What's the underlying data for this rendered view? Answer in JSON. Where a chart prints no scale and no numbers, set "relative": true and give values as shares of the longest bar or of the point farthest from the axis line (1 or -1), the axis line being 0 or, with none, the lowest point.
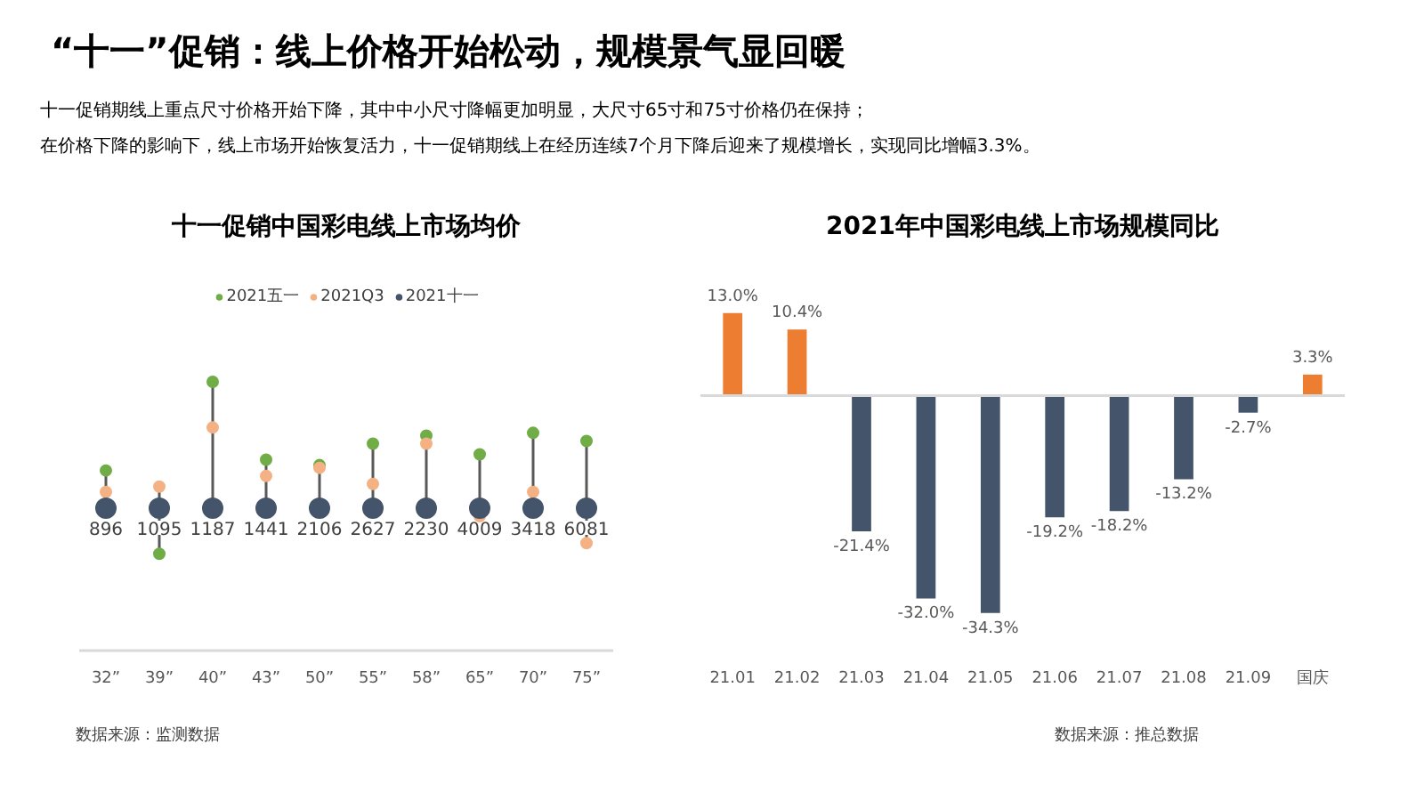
{
  "chart_data": [
    {
      "type": "other",
      "title": "“十一”促销：线上价格开始松动，规模景气显回暖",
      "annotations": [
        "十一促销期线上重点尺寸价格开始下降，其中中小尺寸降幅更加明显，大尺寸65寸和75寸价格仍在保持；",
        "在价格下降的影响下，线上市场开始恢复活力，十一促销期线上在经历连续7个月下降后迎来了规模增长，实现同比增幅3.3%。"
      ]
    },
    {
      "type": "scatter",
      "title": "十一促销中国彩电线上市场均价",
      "categories": [
        "32”",
        "39”",
        "40”",
        "43”",
        "50”",
        "55”",
        "58”",
        "65”",
        "70”",
        "75”"
      ],
      "relative": true,
      "tick_labels": "x",
      "grid": false,
      "legend": "top",
      "marker": "circle",
      "series": [
        {
          "name": "2021五一",
          "color": "#70ad47",
          "values": [
            0.67,
            0.36,
            1.0,
            0.71,
            0.69,
            0.77,
            0.8,
            0.73,
            0.81,
            0.78
          ]
        },
        {
          "name": "2021Q3",
          "color": "#f4b183",
          "values": [
            0.59,
            0.61,
            0.83,
            0.65,
            0.68,
            0.62,
            0.77,
            0.5,
            0.59,
            0.4
          ]
        },
        {
          "name": "2021十一",
          "color": "#44546a",
          "values": [
            0.53,
            0.53,
            0.53,
            0.53,
            0.53,
            0.53,
            0.53,
            0.53,
            0.53,
            0.53
          ]
        }
      ],
      "annotations": [
        {
          "text": "896",
          "x": "32”",
          "y": 0.53
        },
        {
          "text": "1095",
          "x": "39”",
          "y": 0.53
        },
        {
          "text": "1187",
          "x": "40”",
          "y": 0.53
        },
        {
          "text": "1441",
          "x": "43”",
          "y": 0.53
        },
        {
          "text": "2106",
          "x": "50”",
          "y": 0.53
        },
        {
          "text": "2627",
          "x": "55”",
          "y": 0.53
        },
        {
          "text": "2230",
          "x": "58”",
          "y": 0.53
        },
        {
          "text": "4009",
          "x": "65”",
          "y": 0.53
        },
        {
          "text": "3418",
          "x": "70”",
          "y": 0.53
        },
        {
          "text": "6081",
          "x": "75”",
          "y": 0.53
        },
        "数据来源：监测数据"
      ]
    },
    {
      "type": "bar",
      "title": "2021年中国彩电线上市场规模同比",
      "categories": [
        "21.01",
        "21.02",
        "21.03",
        "21.04",
        "21.05",
        "21.06",
        "21.07",
        "21.08",
        "21.09",
        "国庆"
      ],
      "tick_labels": "x",
      "grid": false,
      "values": [
        13.0,
        10.4,
        -21.4,
        -32.0,
        -34.3,
        -19.2,
        -18.2,
        -13.2,
        -2.7,
        3.3
      ],
      "colors": [
        "#ed7d31",
        "#ed7d31",
        "#44546a",
        "#44546a",
        "#44546a",
        "#44546a",
        "#44546a",
        "#44546a",
        "#44546a",
        "#ed7d31"
      ],
      "value_labels": [
        "13.0%",
        "10.4%",
        "-21.4%",
        "-32.0%",
        "-34.3%",
        "-19.2%",
        "-18.2%",
        "-13.2%",
        "-2.7%",
        "3.3%"
      ],
      "annotations": [
        "数据来源：推总数据"
      ]
    }
  ]
}
